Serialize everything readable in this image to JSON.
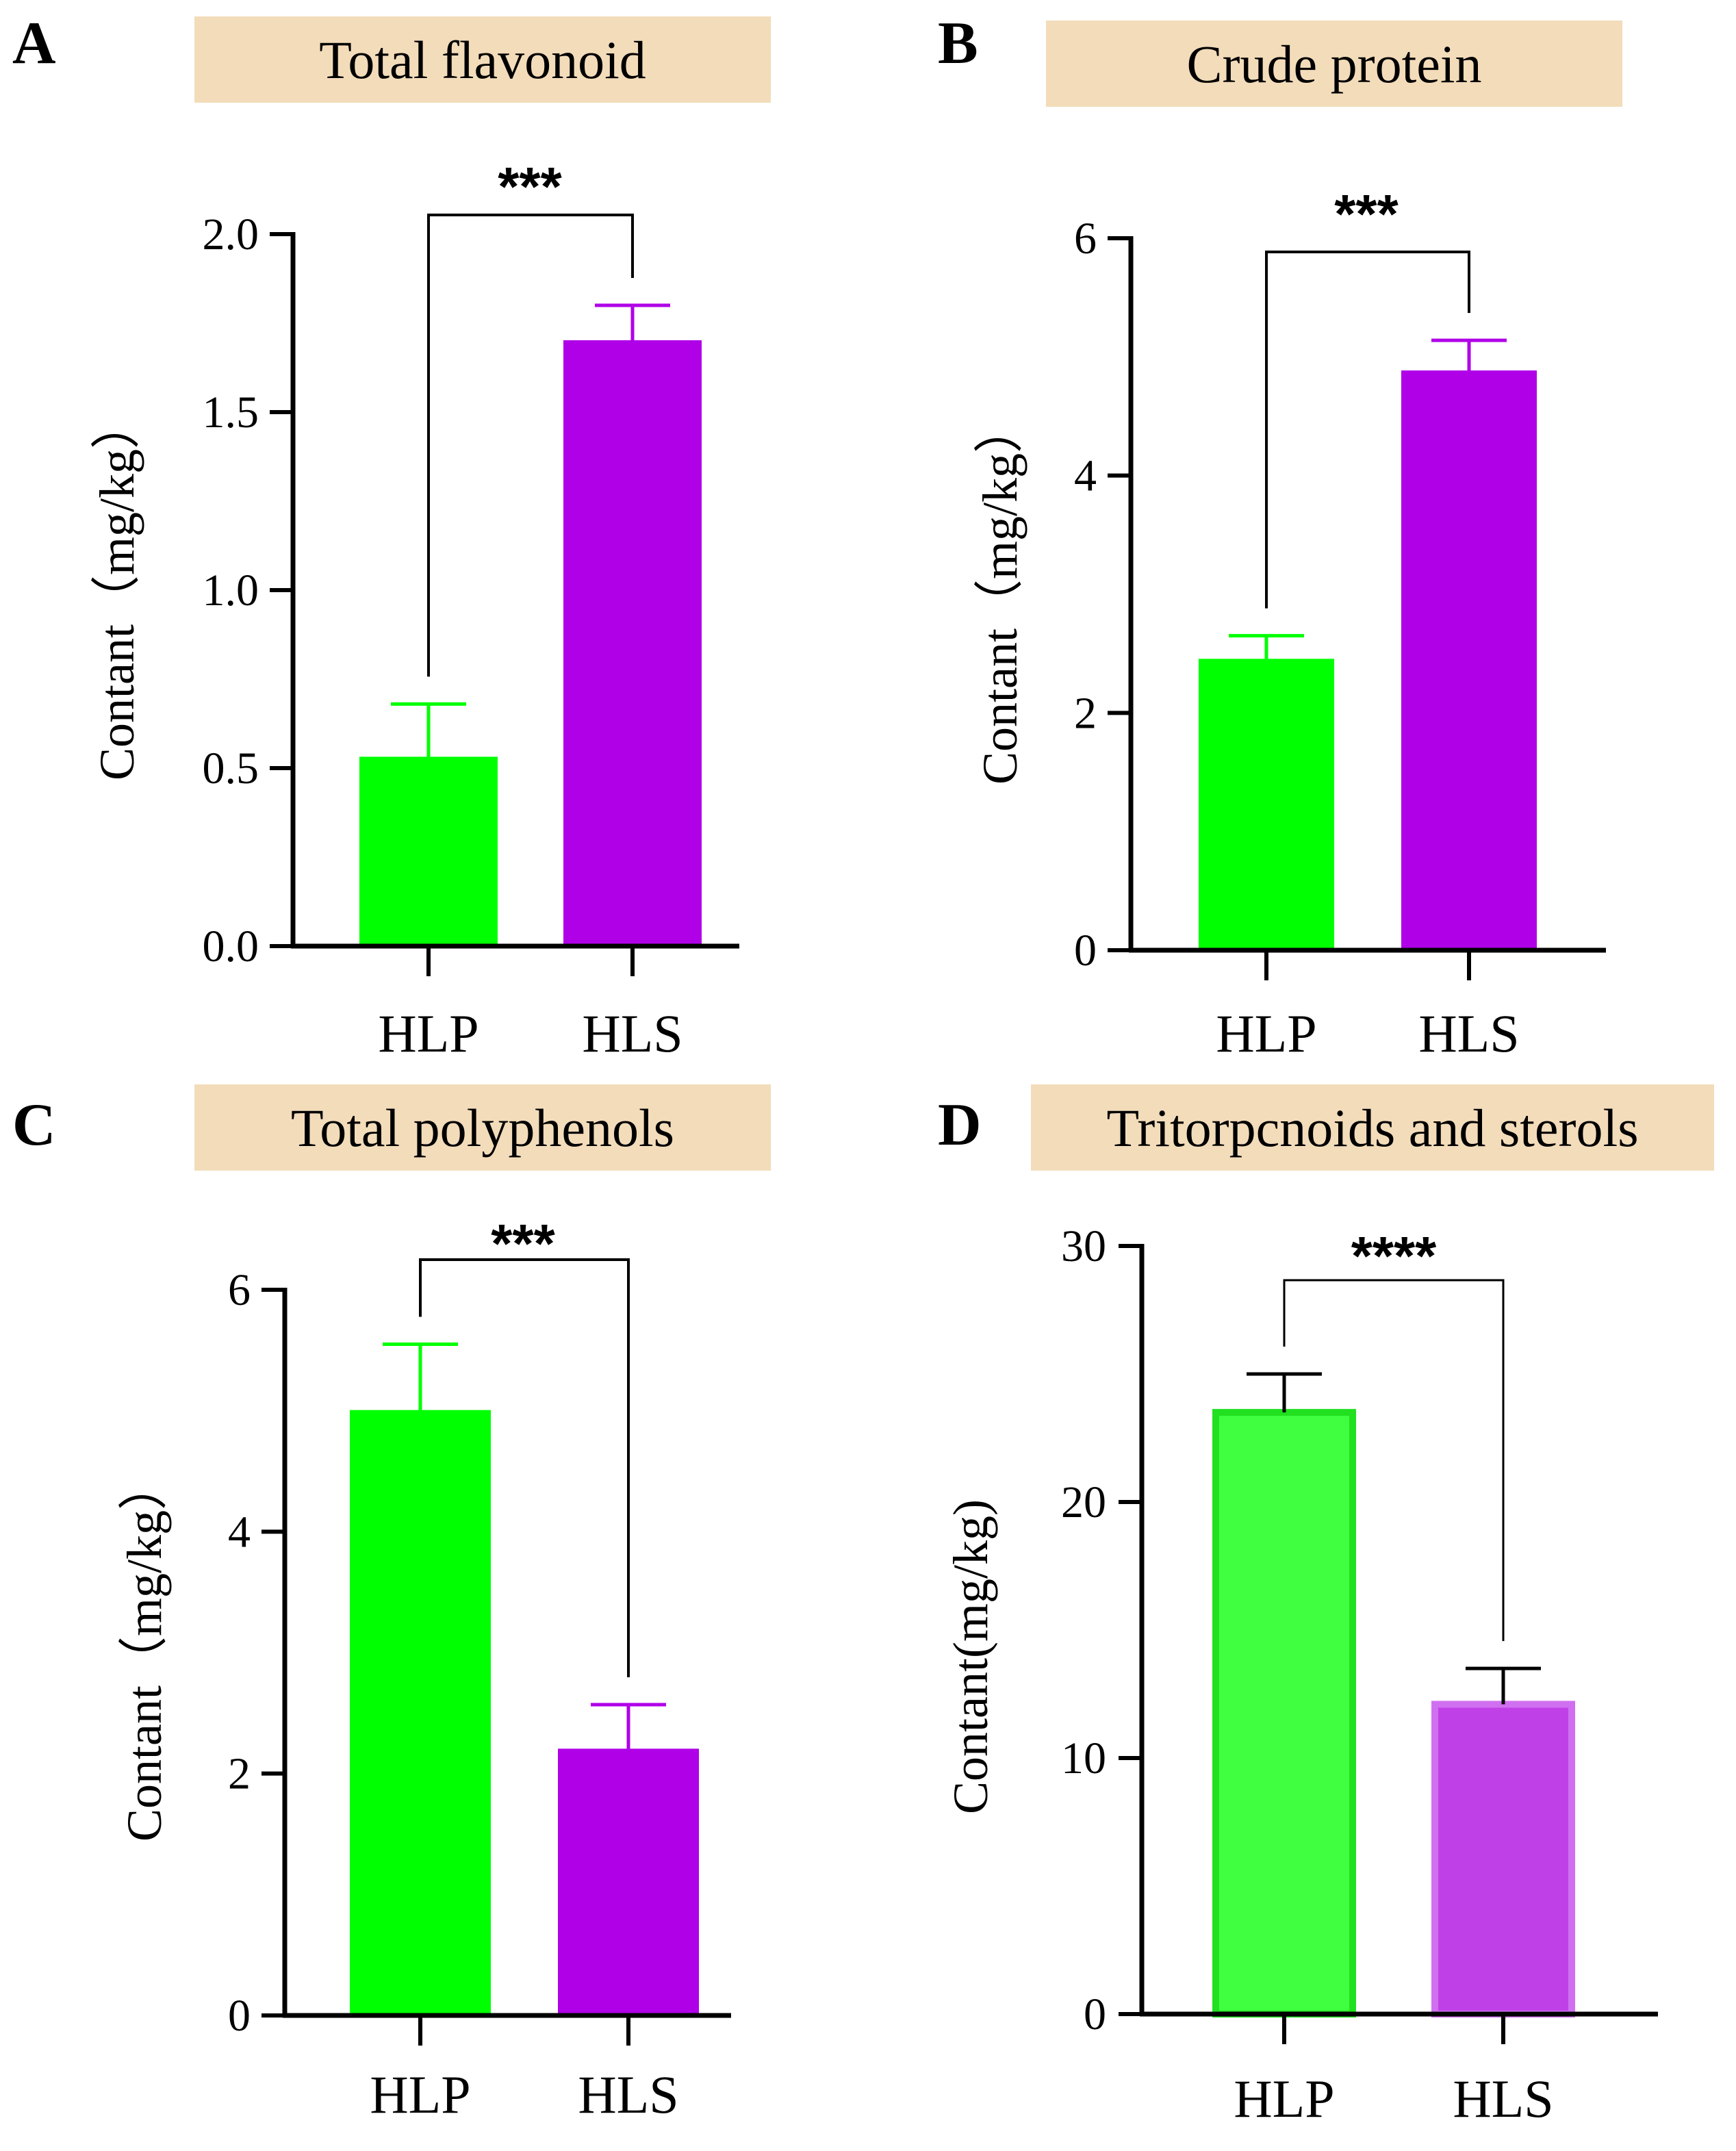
{
  "chart_data": [
    {
      "panel": "A",
      "type": "bar",
      "title": "Total flavonoid",
      "ylabel": "Contant（mg/kg）",
      "categories": [
        "HLP",
        "HLS"
      ],
      "values": [
        0.53,
        1.7
      ],
      "errors": [
        0.15,
        0.1
      ],
      "ylim": [
        0,
        2.0
      ],
      "yticks": [
        0.0,
        0.5,
        1.0,
        1.5,
        2.0
      ],
      "ytick_labels": [
        "0.0",
        "0.5",
        "1.0",
        "1.5",
        "2.0"
      ],
      "significance": "***",
      "bar_colors": [
        "#00ff00",
        "#b000e8"
      ],
      "error_colors": [
        "#00ff00",
        "#b000e8"
      ]
    },
    {
      "panel": "B",
      "type": "bar",
      "title": "Crude protein",
      "ylabel": "Contant（mg/kg）",
      "categories": [
        "HLP",
        "HLS"
      ],
      "values": [
        2.45,
        4.88
      ],
      "errors": [
        0.2,
        0.26
      ],
      "ylim": [
        0,
        6
      ],
      "yticks": [
        0,
        2,
        4,
        6
      ],
      "ytick_labels": [
        "0",
        "2",
        "4",
        "6"
      ],
      "significance": "***",
      "bar_colors": [
        "#00ff00",
        "#b000e8"
      ],
      "error_colors": [
        "#00ff00",
        "#b000e8"
      ]
    },
    {
      "panel": "C",
      "type": "bar",
      "title": "Total polyphenols",
      "ylabel": "Contant（mg/kg）",
      "categories": [
        "HLP",
        "HLS"
      ],
      "values": [
        5.0,
        2.2
      ],
      "errors": [
        0.55,
        0.37
      ],
      "ylim": [
        0,
        6
      ],
      "yticks": [
        0,
        2,
        4,
        6
      ],
      "ytick_labels": [
        "0",
        "2",
        "4",
        "6"
      ],
      "significance": "***",
      "bar_colors": [
        "#00ff00",
        "#b000e8"
      ],
      "error_colors": [
        "#00ff00",
        "#b000e8"
      ]
    },
    {
      "panel": "D",
      "type": "bar",
      "title": "Tritorpcnoids and sterols",
      "ylabel": "Contant(mg/kg)",
      "categories": [
        "HLP",
        "HLS"
      ],
      "values": [
        23.5,
        12.1
      ],
      "errors": [
        1.5,
        1.4
      ],
      "ylim": [
        0,
        30
      ],
      "yticks": [
        0,
        10,
        20,
        30
      ],
      "ytick_labels": [
        "0",
        "10",
        "20",
        "30"
      ],
      "significance": "****",
      "bar_colors": [
        "#40ff40",
        "#c040e8"
      ],
      "error_colors": [
        "#000000",
        "#000000"
      ]
    }
  ],
  "colors": {
    "title_box": "#f3dcba",
    "axis": "#000000"
  }
}
